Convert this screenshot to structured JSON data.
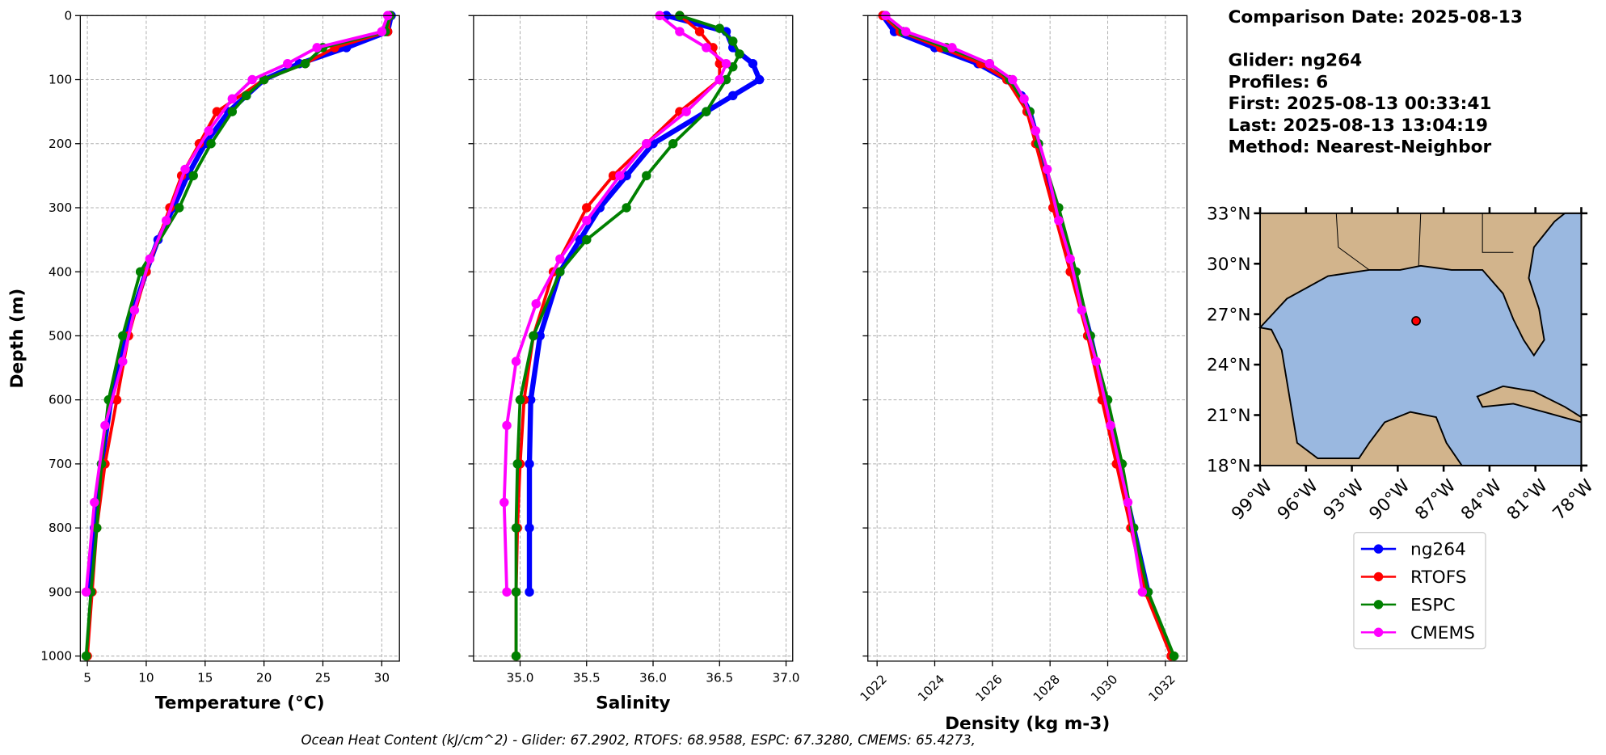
{
  "chart_data": [
    {
      "type": "line",
      "xlabel": "Temperature (°C)",
      "ylabel": "Depth (m)",
      "xlim": [
        4.4,
        31.5
      ],
      "xticks": [
        5,
        10,
        15,
        20,
        25,
        30
      ],
      "ylim": [
        0,
        1008
      ],
      "yticks": [
        0,
        100,
        200,
        300,
        400,
        500,
        600,
        700,
        800,
        900,
        1000
      ],
      "y_inverted": true,
      "show_ytick_labels": true,
      "grid": true,
      "xtick_rotation": 0,
      "series": [
        {
          "name": "ng264",
          "color": "#0000ff",
          "depth": [
            0,
            25,
            50,
            75,
            100,
            125,
            150,
            200,
            250,
            300,
            350,
            400,
            500,
            600,
            700,
            800,
            900
          ],
          "values": [
            30.8,
            30.5,
            27,
            23,
            20,
            18.5,
            17,
            15,
            13.5,
            12.3,
            11,
            10,
            8.2,
            7,
            6.2,
            5.6,
            5.2
          ]
        },
        {
          "name": "RTOFS",
          "color": "#ff0000",
          "depth": [
            0,
            25,
            50,
            75,
            100,
            150,
            200,
            250,
            300,
            400,
            500,
            600,
            700,
            800,
            900,
            1000
          ],
          "values": [
            30.7,
            30.5,
            26,
            23.5,
            20,
            16,
            14.5,
            13,
            12,
            10,
            8.5,
            7.5,
            6.5,
            5.8,
            5.4,
            5.0
          ]
        },
        {
          "name": "ESPC",
          "color": "#008000",
          "depth": [
            0,
            25,
            50,
            75,
            100,
            125,
            150,
            200,
            250,
            300,
            400,
            500,
            600,
            700,
            800,
            900,
            1000
          ],
          "values": [
            30.7,
            30.3,
            25,
            23.5,
            20,
            18.5,
            17.3,
            15.5,
            14,
            12.8,
            9.5,
            8,
            6.8,
            6.2,
            5.8,
            5.3,
            4.9
          ]
        },
        {
          "name": "CMEMS",
          "color": "#ff00ff",
          "depth": [
            0,
            25,
            50,
            75,
            100,
            130,
            180,
            240,
            320,
            380,
            460,
            540,
            640,
            760,
            900
          ],
          "values": [
            30.5,
            30,
            24.5,
            22,
            19,
            17.3,
            15.3,
            13.3,
            11.7,
            10.3,
            9,
            8,
            6.5,
            5.6,
            4.9
          ]
        }
      ]
    },
    {
      "type": "line",
      "xlabel": "Salinity",
      "xlim": [
        34.65,
        37.05
      ],
      "xticks": [
        {
          "value": 35,
          "label": "35.0"
        },
        35.5,
        {
          "value": 36,
          "label": "36.0"
        },
        36.5,
        {
          "value": 37,
          "label": "37.0"
        }
      ],
      "ylim": [
        0,
        1008
      ],
      "yticks": [
        0,
        100,
        200,
        300,
        400,
        500,
        600,
        700,
        800,
        900,
        1000
      ],
      "y_inverted": true,
      "show_ytick_labels": false,
      "grid": true,
      "xtick_rotation": 0,
      "series": [
        {
          "name": "ng264",
          "color": "#0000ff",
          "depth": [
            0,
            25,
            50,
            75,
            100,
            125,
            150,
            200,
            250,
            300,
            350,
            400,
            500,
            600,
            700,
            800,
            900
          ],
          "values": [
            36.1,
            36.55,
            36.6,
            36.75,
            36.8,
            36.6,
            36.4,
            36.0,
            35.8,
            35.6,
            35.45,
            35.3,
            35.15,
            35.08,
            35.07,
            35.07,
            35.07
          ]
        },
        {
          "name": "RTOFS",
          "color": "#ff0000",
          "depth": [
            0,
            25,
            50,
            75,
            100,
            150,
            200,
            250,
            300,
            400,
            500,
            600,
            700,
            800,
            900,
            1000
          ],
          "values": [
            36.2,
            36.35,
            36.45,
            36.5,
            36.5,
            36.2,
            35.95,
            35.7,
            35.5,
            35.25,
            35.1,
            35.03,
            35.0,
            34.98,
            34.97,
            34.97
          ]
        },
        {
          "name": "ESPC",
          "color": "#008000",
          "depth": [
            0,
            20,
            40,
            60,
            80,
            100,
            150,
            200,
            250,
            300,
            350,
            400,
            500,
            600,
            700,
            800,
            900,
            1000
          ],
          "values": [
            36.2,
            36.5,
            36.6,
            36.65,
            36.6,
            36.55,
            36.4,
            36.15,
            35.95,
            35.8,
            35.5,
            35.3,
            35.1,
            35.0,
            34.98,
            34.97,
            34.97,
            34.97
          ]
        },
        {
          "name": "CMEMS",
          "color": "#ff00ff",
          "depth": [
            0,
            25,
            50,
            75,
            100,
            150,
            200,
            250,
            320,
            380,
            450,
            540,
            640,
            760,
            900
          ],
          "values": [
            36.05,
            36.2,
            36.4,
            36.55,
            36.5,
            36.25,
            35.95,
            35.75,
            35.5,
            35.3,
            35.12,
            34.97,
            34.9,
            34.88,
            34.9
          ]
        }
      ]
    },
    {
      "type": "line",
      "xlabel": "Density (kg m-3)",
      "xlim": [
        1021.68,
        1032.75
      ],
      "xticks": [
        1022,
        1024,
        1026,
        1028,
        1030,
        1032
      ],
      "ylim": [
        0,
        1008
      ],
      "yticks": [
        0,
        100,
        200,
        300,
        400,
        500,
        600,
        700,
        800,
        900,
        1000
      ],
      "y_inverted": true,
      "show_ytick_labels": false,
      "grid": true,
      "xtick_rotation": -45,
      "series": [
        {
          "name": "ng264",
          "color": "#0000ff",
          "depth": [
            0,
            25,
            50,
            75,
            100,
            125,
            150,
            200,
            300,
            400,
            500,
            600,
            700,
            800,
            900
          ],
          "values": [
            1022.2,
            1022.6,
            1024,
            1025.5,
            1026.5,
            1027,
            1027.3,
            1027.6,
            1028.2,
            1028.8,
            1029.4,
            1029.9,
            1030.4,
            1030.9,
            1031.4
          ]
        },
        {
          "name": "RTOFS",
          "color": "#ff0000",
          "depth": [
            0,
            25,
            50,
            75,
            100,
            150,
            200,
            300,
            400,
            500,
            600,
            700,
            800,
            900,
            1000
          ],
          "values": [
            1022.2,
            1022.8,
            1024.2,
            1025.6,
            1026.5,
            1027.2,
            1027.5,
            1028.1,
            1028.7,
            1029.3,
            1029.8,
            1030.3,
            1030.8,
            1031.3,
            1032.2
          ]
        },
        {
          "name": "ESPC",
          "color": "#008000",
          "depth": [
            0,
            25,
            50,
            75,
            100,
            150,
            200,
            300,
            400,
            500,
            600,
            700,
            800,
            900,
            1000
          ],
          "values": [
            1022.3,
            1022.9,
            1024.4,
            1025.9,
            1026.6,
            1027.3,
            1027.6,
            1028.3,
            1028.9,
            1029.4,
            1030,
            1030.5,
            1030.9,
            1031.4,
            1032.3
          ]
        },
        {
          "name": "CMEMS",
          "color": "#ff00ff",
          "depth": [
            0,
            25,
            50,
            75,
            100,
            130,
            180,
            240,
            320,
            380,
            460,
            540,
            640,
            760,
            900
          ],
          "values": [
            1022.3,
            1023,
            1024.6,
            1025.9,
            1026.7,
            1027.1,
            1027.5,
            1027.9,
            1028.3,
            1028.7,
            1029.1,
            1029.6,
            1030.1,
            1030.7,
            1031.2
          ]
        }
      ]
    }
  ],
  "info": [
    "Comparison Date: 2025-08-13",
    "Glider: ng264",
    "Profiles: 6",
    "First: 2025-08-13 00:33:41",
    "Last: 2025-08-13 13:04:19",
    "Method: Nearest-Neighbor"
  ],
  "map": {
    "lonlim": [
      -99,
      -78
    ],
    "latlim": [
      18,
      33
    ],
    "lonticks": [
      {
        "value": -99,
        "label": "99°W"
      },
      {
        "value": -96,
        "label": "96°W"
      },
      {
        "value": -93,
        "label": "93°W"
      },
      {
        "value": -90,
        "label": "90°W"
      },
      {
        "value": -87,
        "label": "87°W"
      },
      {
        "value": -84,
        "label": "84°W"
      },
      {
        "value": -81,
        "label": "81°W"
      },
      {
        "value": -78,
        "label": "78°W"
      }
    ],
    "latticks": [
      {
        "value": 18,
        "label": "18°N"
      },
      {
        "value": 21,
        "label": "21°N"
      },
      {
        "value": 24,
        "label": "24°N"
      },
      {
        "value": 27,
        "label": "27°N"
      },
      {
        "value": 30,
        "label": "30°N"
      },
      {
        "value": 33,
        "label": "33°N"
      }
    ],
    "glider_position": {
      "lon": -88.8,
      "lat": 26.6
    },
    "land_color": "#d2b48c",
    "ocean_color": "#9ab8e0",
    "point_color": "#ff0000"
  },
  "footer": "Ocean Heat Content (kJ/cm^2) - Glider: 67.2902,  RTOFS: 68.9588,  ESPC: 67.3280,  CMEMS: 65.4273,"
}
